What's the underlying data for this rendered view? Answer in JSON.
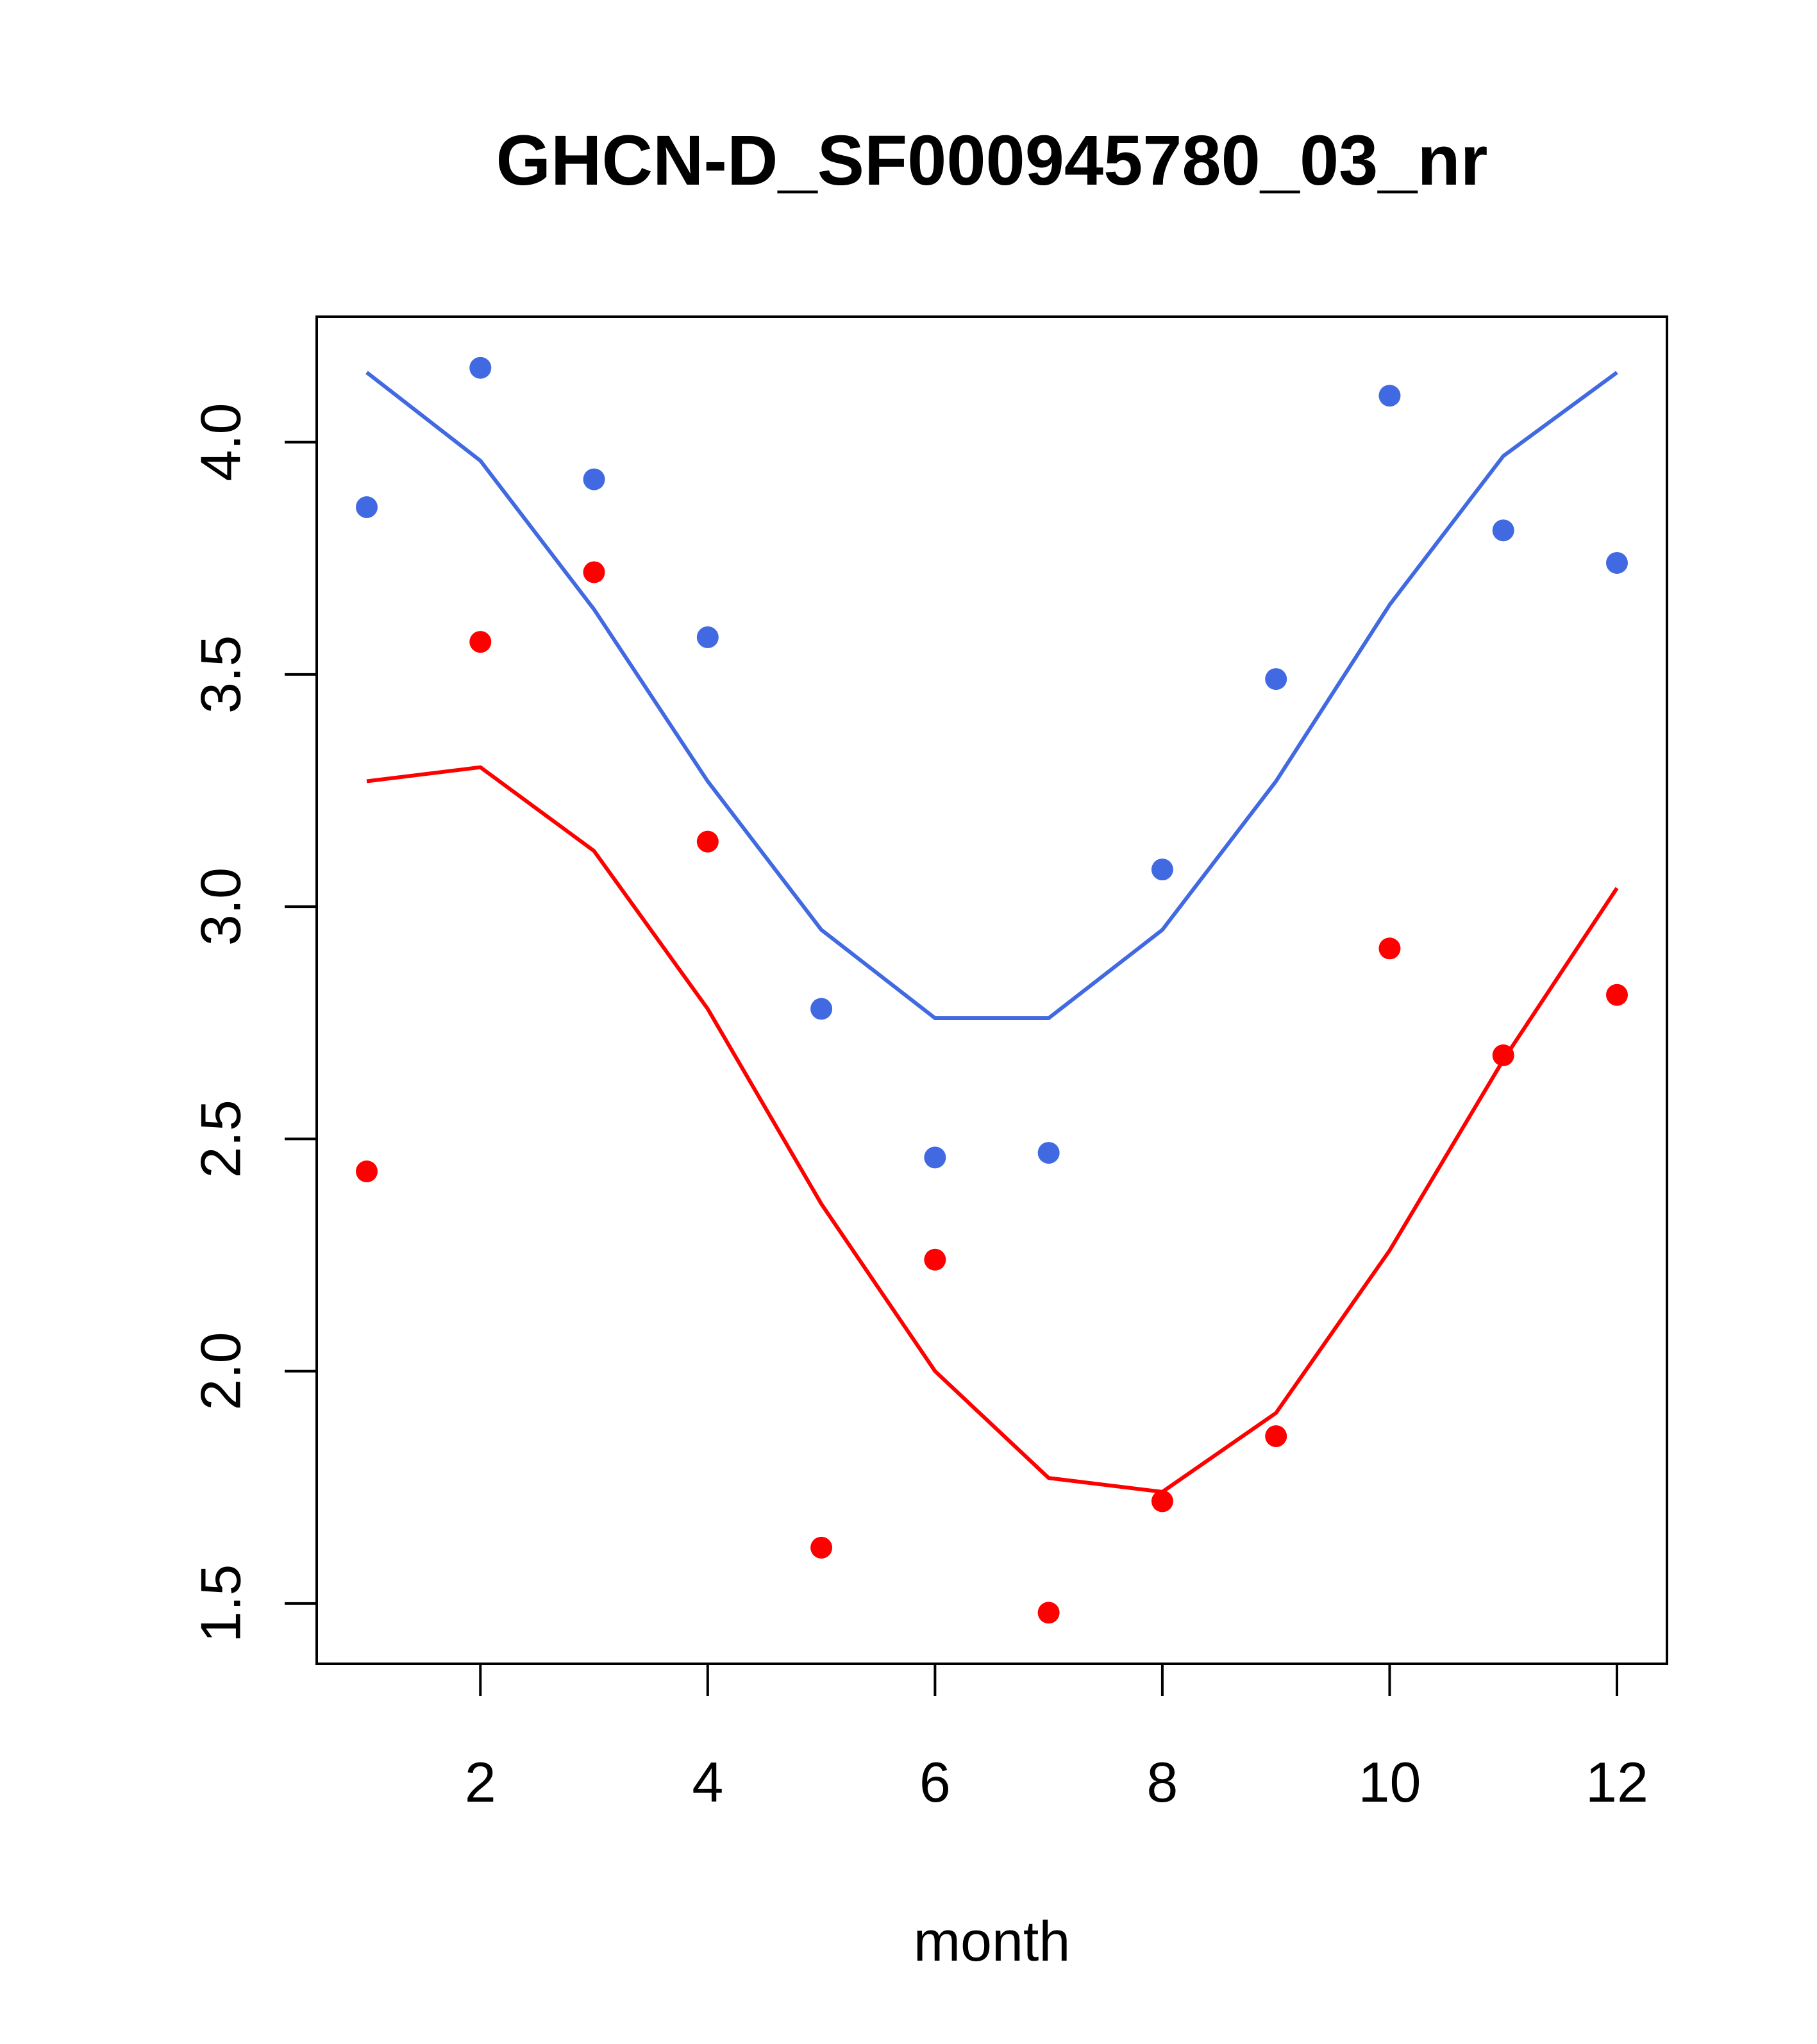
{
  "chart_data": {
    "type": "scatter",
    "title": "GHCN-D_SF000945780_03_nr",
    "xlabel": "month",
    "ylabel": "",
    "xlim": [
      1,
      12
    ],
    "ylim": [
      1.37,
      4.27
    ],
    "x_ticks": [
      2,
      4,
      6,
      8,
      10,
      12
    ],
    "x_tick_labels": [
      "2",
      "4",
      "6",
      "8",
      "10",
      "12"
    ],
    "y_ticks": [
      1.5,
      2.0,
      2.5,
      3.0,
      3.5,
      4.0
    ],
    "y_tick_labels": [
      "1.5",
      "2.0",
      "2.5",
      "3.0",
      "3.5",
      "4.0"
    ],
    "grid": false,
    "series": [
      {
        "name": "blue-points",
        "kind": "points",
        "color": "#4169E1",
        "x": [
          1,
          2,
          3,
          4,
          5,
          6,
          7,
          8,
          9,
          10,
          11,
          12
        ],
        "y": [
          3.86,
          4.16,
          3.92,
          3.58,
          2.78,
          2.46,
          2.47,
          3.08,
          3.49,
          4.1,
          3.81,
          3.74
        ]
      },
      {
        "name": "blue-fit",
        "kind": "line",
        "color": "#4169E1",
        "x": [
          1,
          2,
          3,
          4,
          5,
          6,
          7,
          8,
          9,
          10,
          11,
          12
        ],
        "y": [
          4.15,
          3.96,
          3.64,
          3.27,
          2.95,
          2.76,
          2.76,
          2.95,
          3.27,
          3.65,
          3.97,
          4.15
        ]
      },
      {
        "name": "red-points",
        "kind": "points",
        "color": "#FF0000",
        "x": [
          1,
          2,
          3,
          4,
          5,
          6,
          7,
          8,
          9,
          10,
          11,
          12
        ],
        "y": [
          2.43,
          3.57,
          3.72,
          3.14,
          1.62,
          2.24,
          1.48,
          1.72,
          1.86,
          2.91,
          2.68,
          2.81
        ]
      },
      {
        "name": "red-fit",
        "kind": "line",
        "color": "#FF0000",
        "x": [
          1,
          2,
          3,
          4,
          5,
          6,
          7,
          8,
          9,
          10,
          11,
          12
        ],
        "y": [
          3.27,
          3.3,
          3.12,
          2.78,
          2.36,
          2.0,
          1.77,
          1.74,
          1.91,
          2.26,
          2.67,
          3.04
        ]
      }
    ]
  }
}
